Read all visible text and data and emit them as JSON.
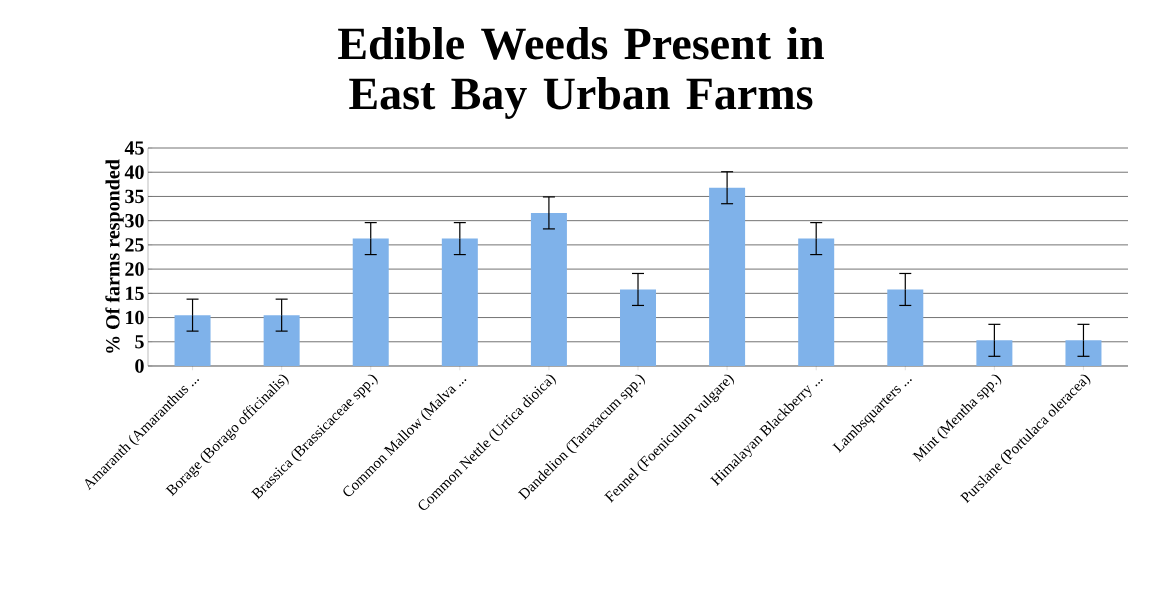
{
  "chart_data": {
    "type": "bar",
    "title": "Edible Weeds Present in East Bay Urban Farms",
    "ylabel": "% Of farms responded",
    "categories": [
      "Amaranth (Amaranthus ...",
      "Borage (Borago officinalis)",
      "Brassica (Brassicaceae spp.)",
      "Common Mallow (Malva ...",
      "Common Nettle (Urtica dioica)",
      "Dandelion (Taraxacum spp.)",
      "Fennel (Foeniculum vulgare)",
      "Himalayan Blackberry ...",
      "Lambsquarters ...",
      "Mint (Mentha spp.)",
      "Purslane (Portulaca oleracea)"
    ],
    "values": [
      10.5,
      10.5,
      26.3,
      26.3,
      31.6,
      15.8,
      36.8,
      26.3,
      15.8,
      5.3,
      5.3
    ],
    "errors": [
      3.3,
      3.3,
      3.3,
      3.3,
      3.3,
      3.3,
      3.3,
      3.3,
      3.3,
      3.3,
      3.3
    ],
    "color": "#7fb2ea",
    "ylim": [
      0,
      45
    ],
    "yticks": [
      0,
      5,
      10,
      15,
      20,
      25,
      30,
      35,
      40,
      45
    ],
    "grid": "y"
  }
}
